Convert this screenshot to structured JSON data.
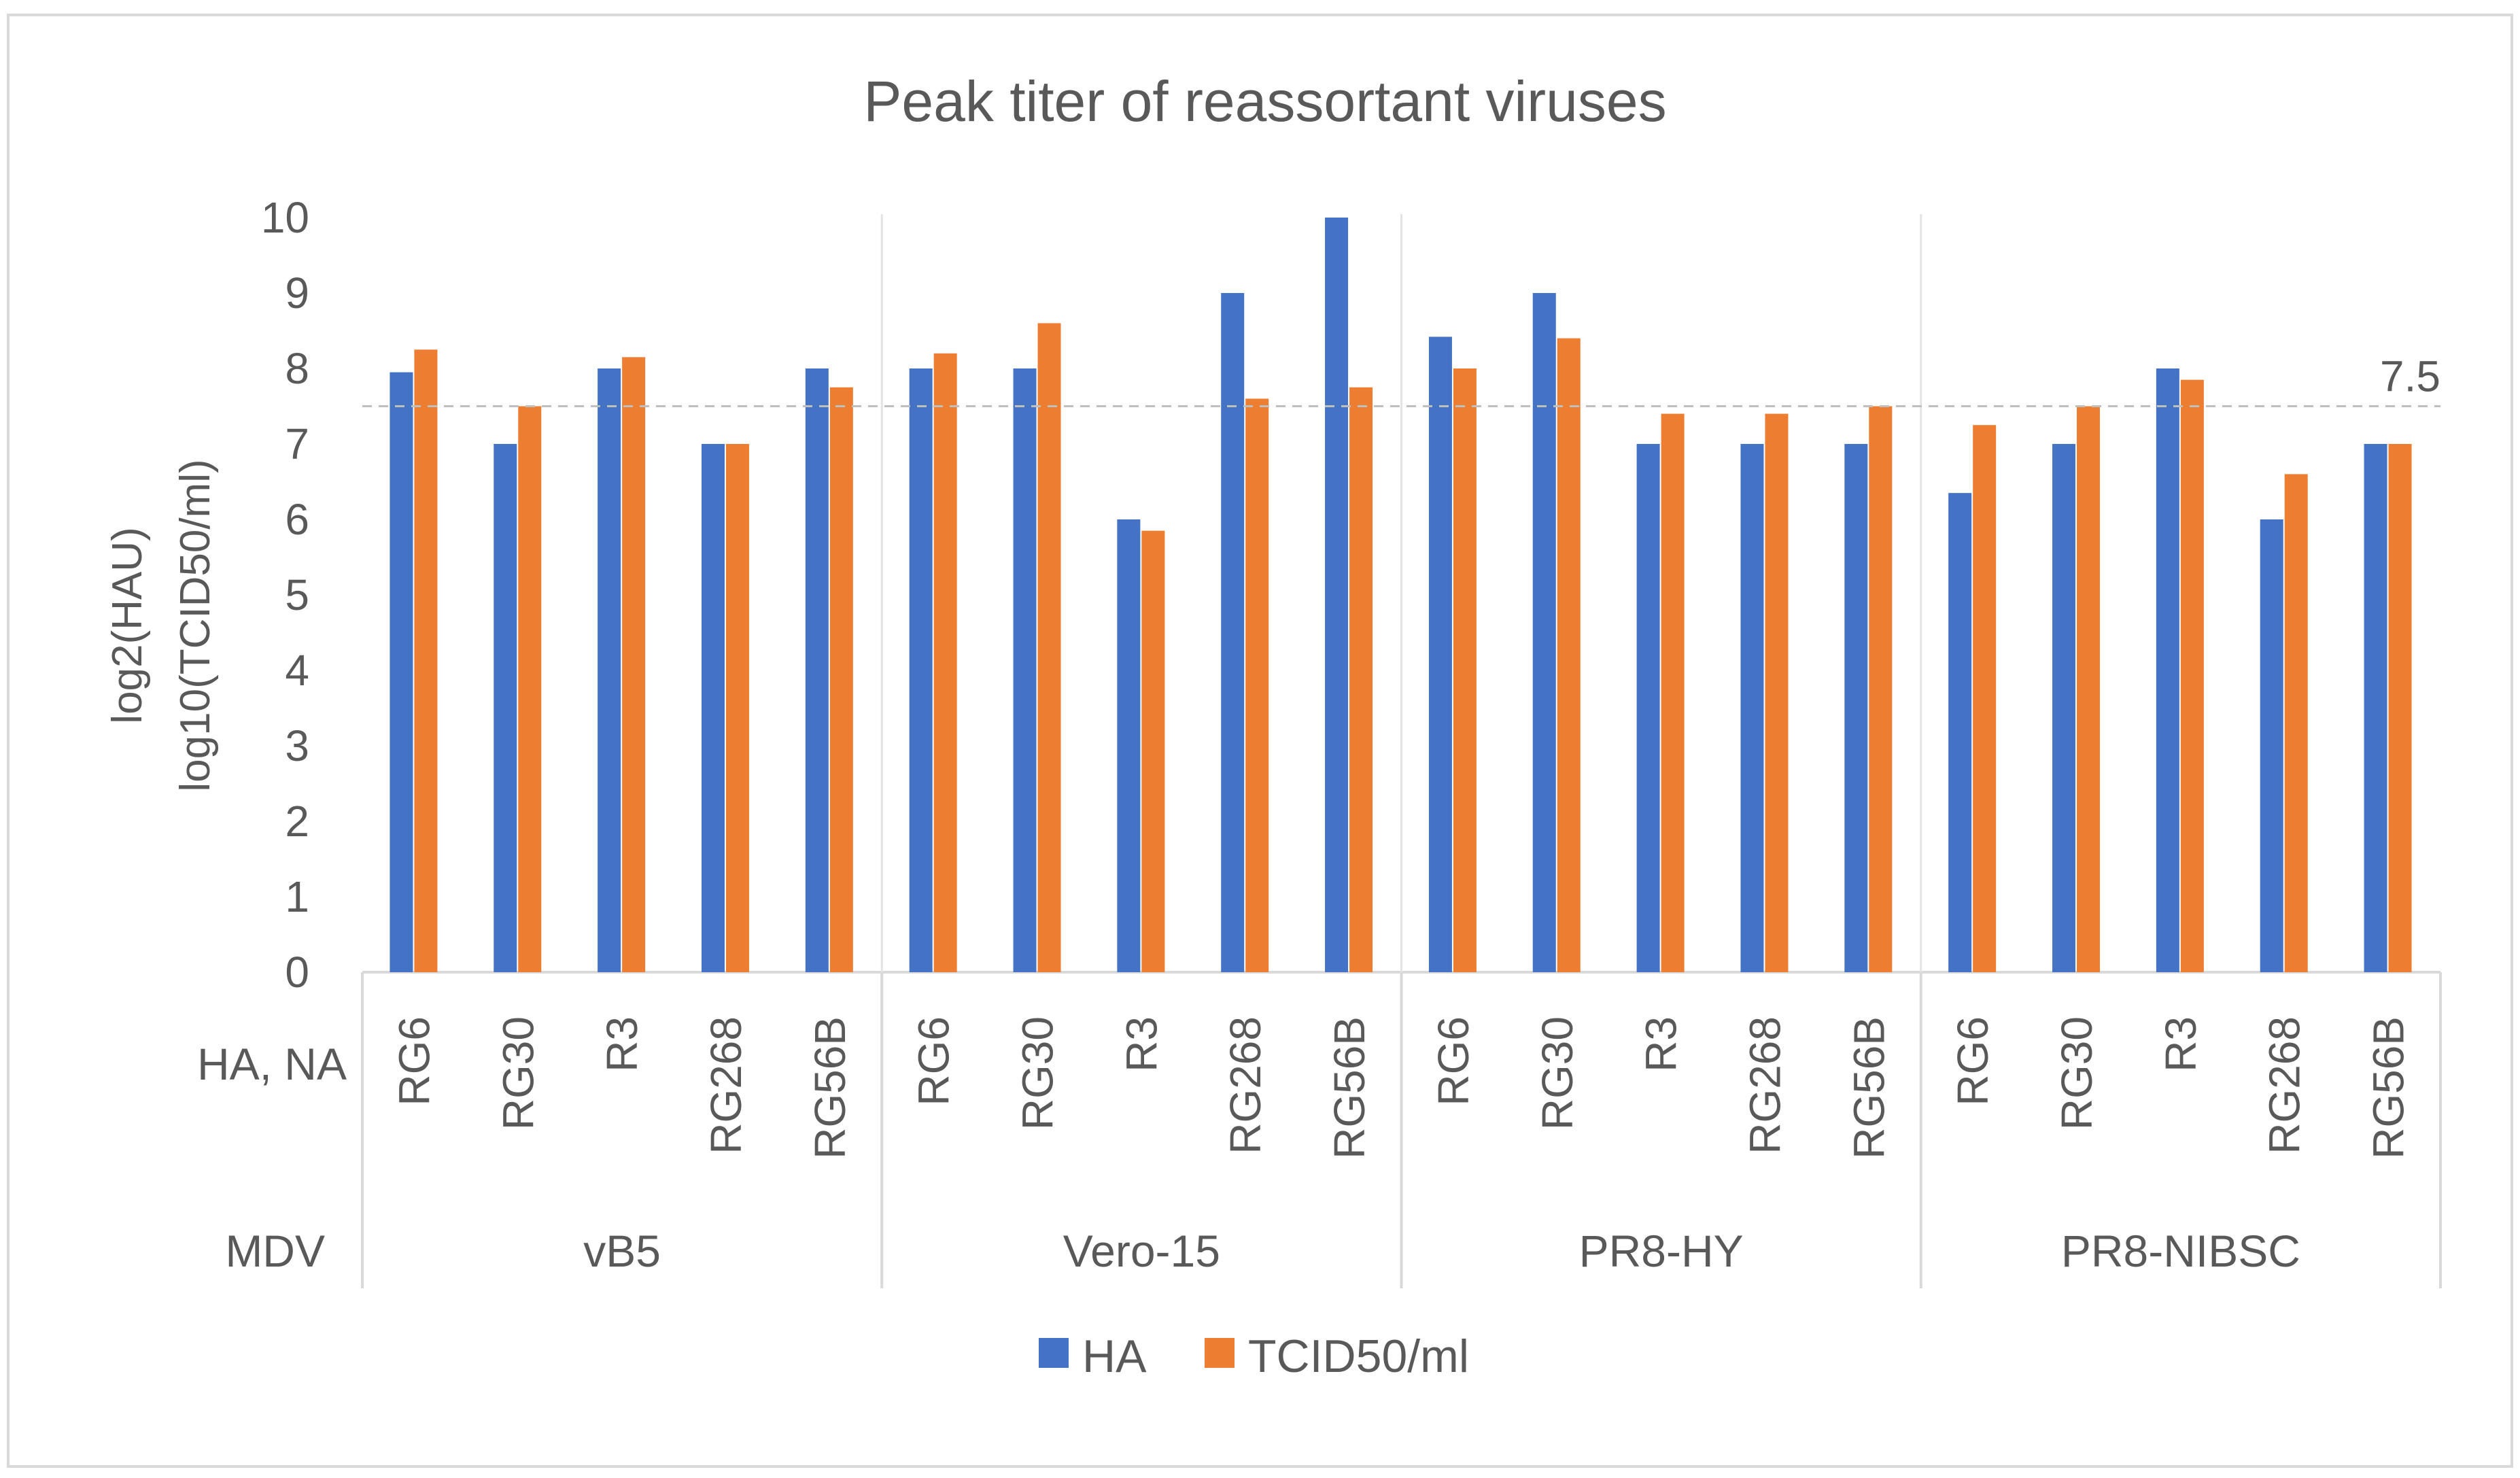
{
  "chart_data": {
    "type": "bar",
    "title": "Peak titer of reassortant viruses",
    "ylabel_lines": [
      "log2(HAU)",
      "log10(TCID50/ml)"
    ],
    "ylim": [
      0,
      10
    ],
    "yticks": [
      0,
      1,
      2,
      3,
      4,
      5,
      6,
      7,
      8,
      9,
      10
    ],
    "row_labels": {
      "inner": "HA, NA",
      "outer": "MDV"
    },
    "groups": [
      {
        "name": "vB5",
        "categories": [
          "RG6",
          "RG30",
          "R3",
          "RG268",
          "RG56B"
        ]
      },
      {
        "name": "Vero-15",
        "categories": [
          "RG6",
          "RG30",
          "R3",
          "RG268",
          "RG56B"
        ]
      },
      {
        "name": "PR8-HY",
        "categories": [
          "RG6",
          "RG30",
          "R3",
          "RG268",
          "RG56B"
        ]
      },
      {
        "name": "PR8-NIBSC",
        "categories": [
          "RG6",
          "RG30",
          "R3",
          "RG268",
          "RG56B"
        ]
      }
    ],
    "series": [
      {
        "name": "HA",
        "color": "#4472C4",
        "values": [
          7.95,
          7,
          8,
          7,
          8,
          8,
          8,
          6,
          9,
          10,
          8.42,
          9,
          7,
          7,
          7,
          6.35,
          7,
          8,
          6,
          7
        ]
      },
      {
        "name": "TCID50/ml",
        "color": "#ED7D31",
        "values": [
          8.25,
          7.5,
          8.15,
          7,
          7.75,
          8.2,
          8.6,
          5.85,
          7.6,
          7.75,
          8,
          8.4,
          7.4,
          7.4,
          7.5,
          7.25,
          7.5,
          7.85,
          6.6,
          7
        ]
      }
    ],
    "reference_line": {
      "value": 7.5,
      "label": "7.5",
      "style": "dashed"
    },
    "legend_position": "bottom-center",
    "grid": false
  }
}
